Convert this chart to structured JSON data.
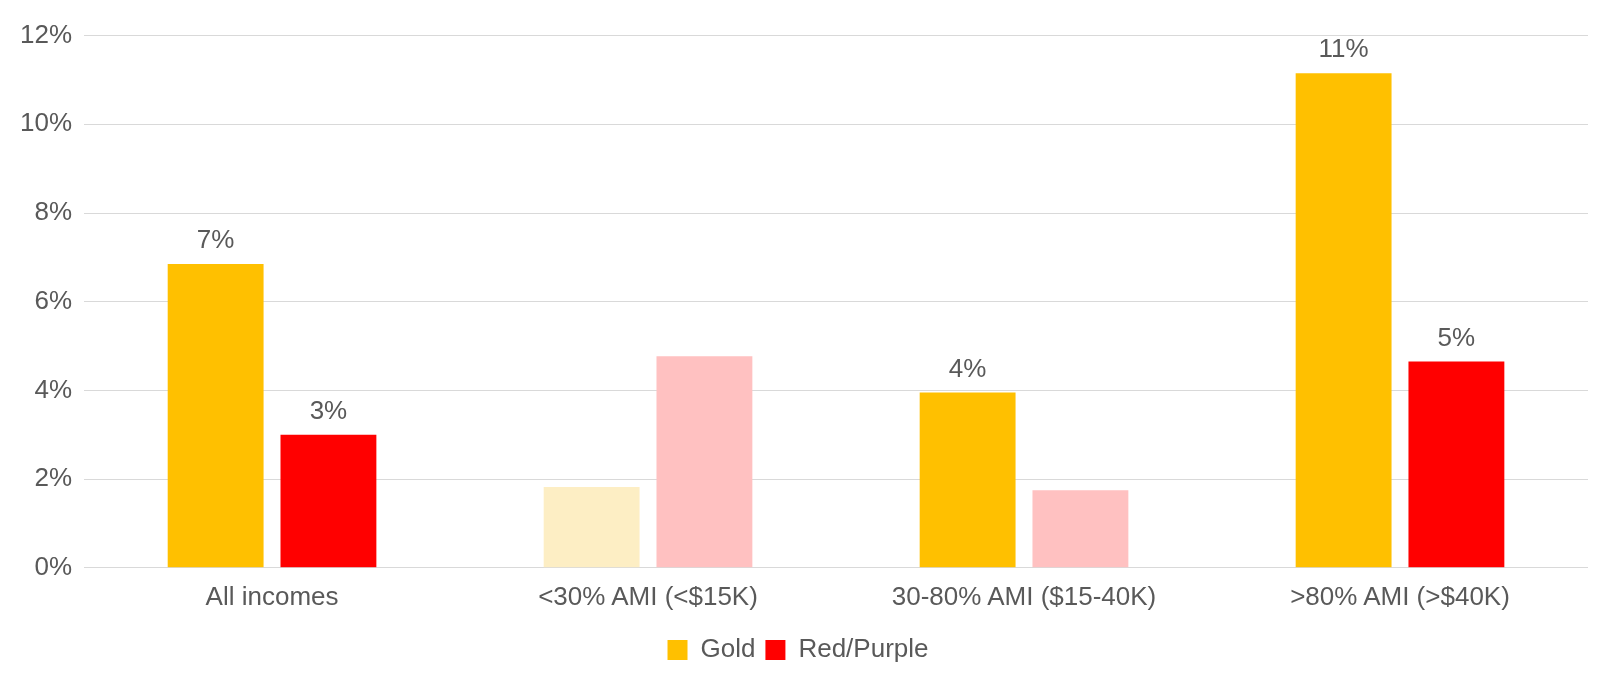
{
  "chart_data": {
    "type": "bar",
    "categories": [
      "All incomes",
      "<30% AMI (<$15K)",
      "30-80% AMI ($15-40K)",
      ">80% AMI (>$40K)"
    ],
    "series": [
      {
        "name": "Gold",
        "color": "#ffc000",
        "colors": [
          "#ffc000",
          "#fdeec4",
          "#ffc000",
          "#ffc000"
        ],
        "values": [
          6.85,
          1.82,
          3.95,
          11.15
        ],
        "value_labels": [
          "7%",
          null,
          "4%",
          "11%"
        ]
      },
      {
        "name": "Red/Purple",
        "color": "#ff0000",
        "colors": [
          "#ff0000",
          "#ffc1c1",
          "#ffc1c1",
          "#ff0000"
        ],
        "values": [
          3.0,
          4.77,
          1.75,
          4.65
        ],
        "value_labels": [
          "3%",
          null,
          null,
          "5%"
        ]
      }
    ],
    "ylim": [
      0,
      12
    ],
    "yticks": [
      {
        "value": 0,
        "label": "0%"
      },
      {
        "value": 2,
        "label": "2%"
      },
      {
        "value": 4,
        "label": "4%"
      },
      {
        "value": 6,
        "label": "6%"
      },
      {
        "value": 8,
        "label": "8%"
      },
      {
        "value": 10,
        "label": "10%"
      },
      {
        "value": 12,
        "label": "12%"
      }
    ],
    "grid": "y",
    "legend": "bottom"
  }
}
